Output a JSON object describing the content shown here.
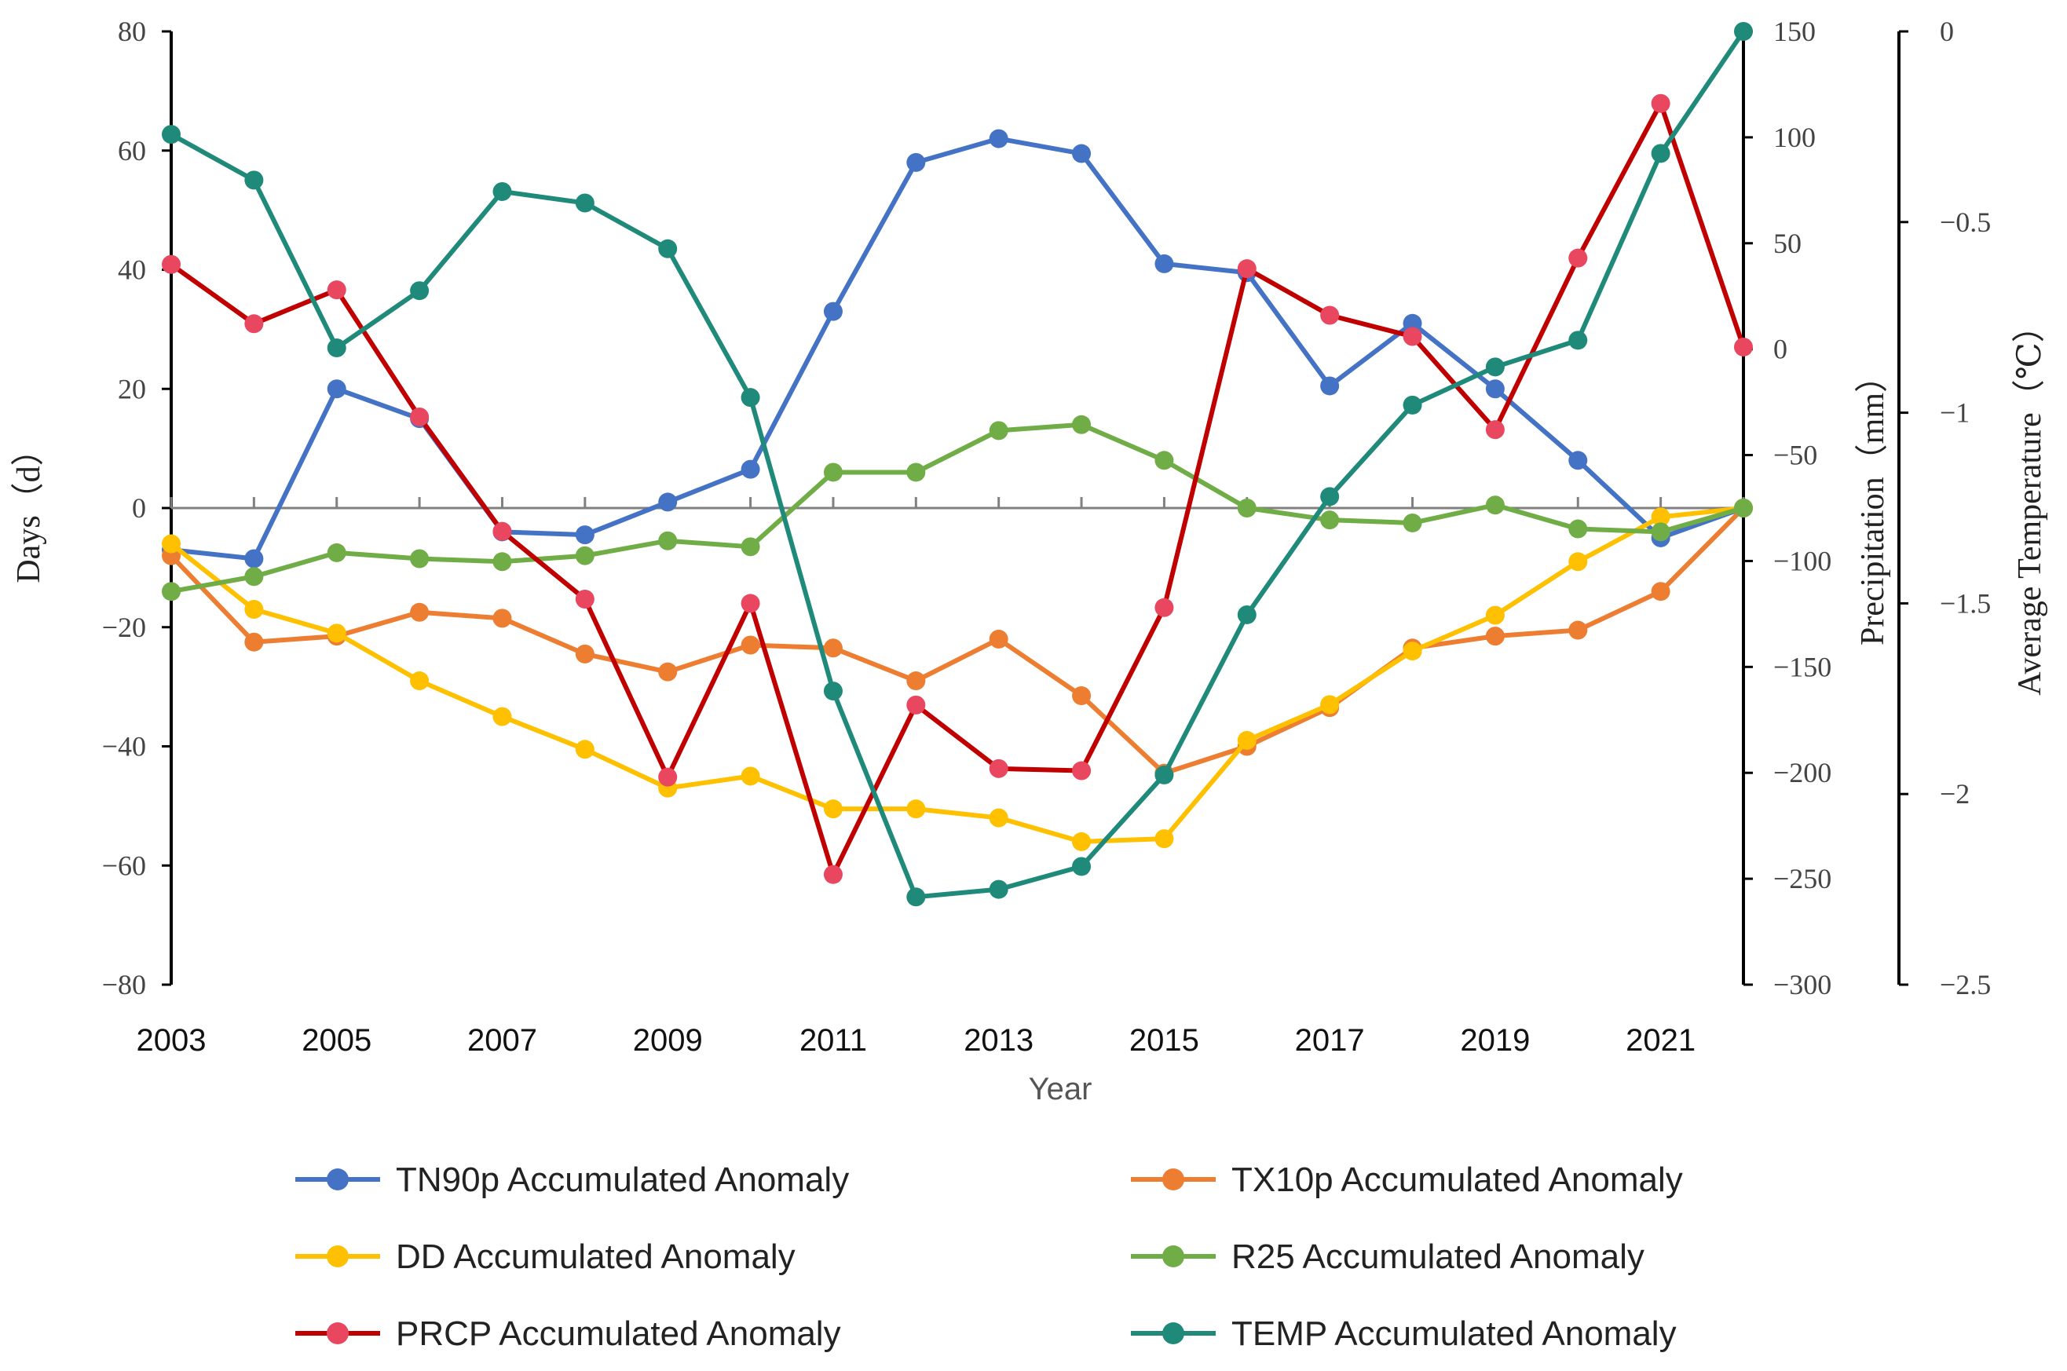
{
  "chart_data": {
    "type": "line",
    "xlabel": "Year",
    "ylabel_left": "Days（d）",
    "ylabel_precip": "Precipitation（mm）",
    "ylabel_temp": "Average Temperature（℃）",
    "x": [
      2003,
      2004,
      2005,
      2006,
      2007,
      2008,
      2009,
      2010,
      2011,
      2012,
      2013,
      2014,
      2015,
      2016,
      2017,
      2018,
      2019,
      2020,
      2021,
      2022
    ],
    "x_tick_labels": [
      "2003",
      "2005",
      "2007",
      "2009",
      "2011",
      "2013",
      "2015",
      "2017",
      "2019",
      "2021"
    ],
    "ylim_left": [
      -80,
      80
    ],
    "yticks_left": [
      80,
      60,
      40,
      20,
      0,
      -20,
      -40,
      -60,
      -80
    ],
    "ytick_labels_left": [
      "80",
      "60",
      "40",
      "20",
      "0",
      "−20",
      "−40",
      "−60",
      "−80"
    ],
    "ylim_precip": [
      -300,
      150
    ],
    "yticks_precip": [
      150,
      100,
      50,
      0,
      -50,
      -100,
      -150,
      -200,
      -250,
      -300
    ],
    "ytick_labels_precip": [
      "150",
      "100",
      "50",
      "0",
      "−50",
      "−100",
      "−150",
      "−200",
      "−250",
      "−300"
    ],
    "ylim_temp": [
      -2.5,
      0
    ],
    "yticks_temp": [
      0,
      -0.5,
      -1,
      -1.5,
      -2,
      -2.5
    ],
    "ytick_labels_temp": [
      "0",
      "−0.5",
      "−1",
      "−1.5",
      "−2",
      "−2.5"
    ],
    "series": [
      {
        "name": "TN90p Accumulated Anomaly",
        "axis": "left",
        "color": "#4472C4",
        "values": [
          -7,
          -8.5,
          20,
          15,
          -4,
          -4.5,
          1,
          6.5,
          33,
          58,
          62,
          59.5,
          41,
          39.5,
          20.5,
          31,
          20,
          8,
          -5,
          0
        ]
      },
      {
        "name": "TX10p Accumulated Anomaly",
        "axis": "left",
        "color": "#ED7D31",
        "values": [
          -8,
          -22.5,
          -21.5,
          -17.5,
          -18.5,
          -24.5,
          -27.5,
          -23,
          -23.5,
          -29,
          -22,
          -31.5,
          -44.5,
          -40,
          -33.5,
          -23.5,
          -21.5,
          -20.5,
          -14,
          0
        ]
      },
      {
        "name": "DD Accumulated Anomaly",
        "axis": "left",
        "color": "#FFC000",
        "values": [
          -6,
          -17,
          -21,
          -29,
          -35,
          -40.5,
          -47,
          -45,
          -50.5,
          -50.5,
          -52,
          -56,
          -55.5,
          -39,
          -33,
          -24,
          -18,
          -9,
          -1.5,
          0
        ]
      },
      {
        "name": "R25 Accumulated Anomaly",
        "axis": "left",
        "color": "#70AD47",
        "values": [
          -14,
          -11.5,
          -7.5,
          -8.5,
          -9,
          -8,
          -5.5,
          -6.5,
          6,
          6,
          13,
          14,
          8,
          0,
          -2,
          -2.5,
          0.5,
          -3.5,
          -4,
          0
        ]
      },
      {
        "name": "PRCP Accumulated Anomaly",
        "axis": "precip",
        "color": "#C00000",
        "marker_color": "#E8475F",
        "values": [
          40,
          12,
          28,
          -32,
          -86,
          -118,
          -202,
          -120,
          -248,
          -168,
          -198,
          -199,
          -122,
          38,
          16,
          6,
          -38,
          43,
          116,
          1
        ]
      },
      {
        "name": "TEMP Accumulated Anomaly",
        "axis": "temp",
        "color": "#1F8A7A",
        "values": [
          -0.27,
          -0.39,
          -0.83,
          -0.68,
          -0.42,
          -0.45,
          -0.57,
          -0.96,
          -1.73,
          -2.27,
          -2.25,
          -2.19,
          -1.95,
          -1.53,
          -1.22,
          -0.98,
          -0.88,
          -0.81,
          -0.32,
          0
        ]
      }
    ],
    "legend_position": "bottom"
  }
}
